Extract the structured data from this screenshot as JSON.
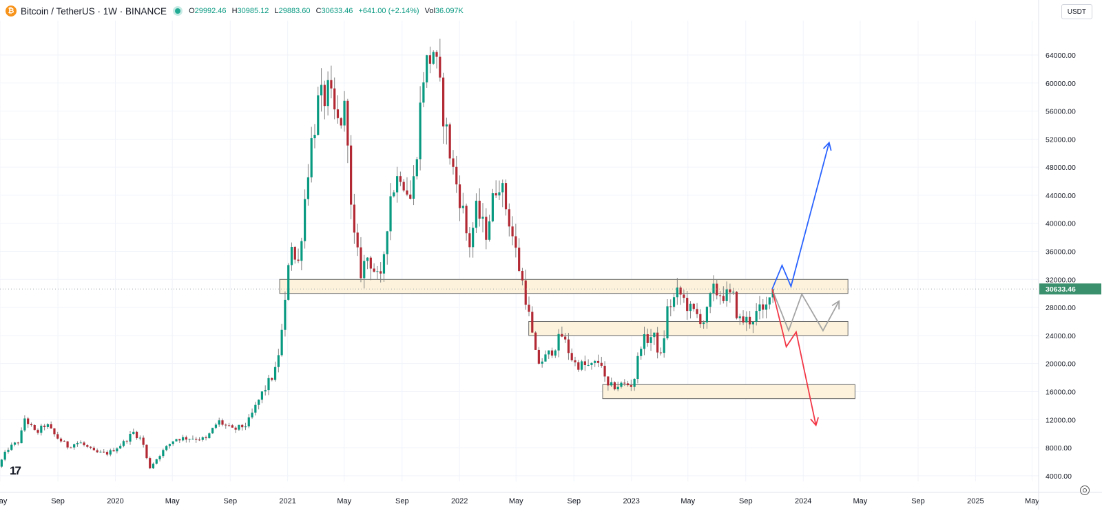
{
  "header": {
    "symbol": "Bitcoin / TetherUS · 1W · BINANCE",
    "open_key": "O",
    "open": "29992.46",
    "high_key": "H",
    "high": "30985.12",
    "low_key": "L",
    "low": "29883.60",
    "close_key": "C",
    "close": "30633.46",
    "change": "+641.00 (+2.14%)",
    "volume_key": "Vol",
    "volume": "36.097K",
    "coin_icon": "bitcoin-icon",
    "live_icon": "market-open-dot-icon"
  },
  "currency_button": "USDT",
  "logo_text": "17",
  "settings_icon": "gear-icon",
  "colors": {
    "up": "#089981",
    "down": "#b22833",
    "zone_fill": "#fdf3dc",
    "zone_border": "#6b6b6b",
    "bull_path": "#2962ff",
    "bear_path": "#f23645",
    "neutral_path": "#a3a3a3",
    "last_price_badge": "#3a8f6c"
  },
  "chart_data": {
    "type": "candlestick",
    "interval": "1W",
    "y_scale": "linear",
    "ylim": [
      3200,
      68900
    ],
    "grid": true,
    "y_ticks": [
      4000,
      8000,
      12000,
      16000,
      20000,
      24000,
      28000,
      32000,
      36000,
      40000,
      44000,
      48000,
      52000,
      56000,
      60000,
      64000
    ],
    "y_tick_labels": [
      "4000.00",
      "8000.00",
      "12000.00",
      "16000.00",
      "20000.00",
      "24000.00",
      "28000.00",
      "32000.00",
      "36000.00",
      "40000.00",
      "44000.00",
      "48000.00",
      "52000.00",
      "56000.00",
      "60000.00",
      "64000.00"
    ],
    "x_range": [
      "2019-05-01",
      "2025-05-15"
    ],
    "x_ticks": [
      {
        "date": "2019-05-01",
        "label": "May"
      },
      {
        "date": "2019-09-01",
        "label": "Sep"
      },
      {
        "date": "2020-01-01",
        "label": "2020"
      },
      {
        "date": "2020-05-01",
        "label": "May"
      },
      {
        "date": "2020-09-01",
        "label": "Sep"
      },
      {
        "date": "2021-01-01",
        "label": "2021"
      },
      {
        "date": "2021-05-01",
        "label": "May"
      },
      {
        "date": "2021-09-01",
        "label": "Sep"
      },
      {
        "date": "2022-01-01",
        "label": "2022"
      },
      {
        "date": "2022-05-01",
        "label": "May"
      },
      {
        "date": "2022-09-01",
        "label": "Sep"
      },
      {
        "date": "2023-01-01",
        "label": "2023"
      },
      {
        "date": "2023-05-01",
        "label": "May"
      },
      {
        "date": "2023-09-01",
        "label": "Sep"
      },
      {
        "date": "2024-01-01",
        "label": "2024"
      },
      {
        "date": "2024-05-01",
        "label": "May"
      },
      {
        "date": "2024-09-01",
        "label": "Sep"
      },
      {
        "date": "2025-01-01",
        "label": "2025"
      },
      {
        "date": "2025-05-01",
        "label": "May"
      }
    ],
    "last_price": 30633.46,
    "last_price_label": "30633.46",
    "price_path": [
      [
        "2019-05-01",
        5300
      ],
      [
        "2019-05-20",
        7800
      ],
      [
        "2019-06-15",
        9000
      ],
      [
        "2019-06-26",
        12200
      ],
      [
        "2019-07-20",
        10000
      ],
      [
        "2019-08-10",
        11400
      ],
      [
        "2019-08-31",
        9600
      ],
      [
        "2019-09-25",
        8200
      ],
      [
        "2019-10-20",
        8800
      ],
      [
        "2019-11-22",
        7300
      ],
      [
        "2019-12-20",
        7200
      ],
      [
        "2020-01-20",
        8600
      ],
      [
        "2020-02-12",
        10200
      ],
      [
        "2020-03-02",
        9000
      ],
      [
        "2020-03-16",
        5000
      ],
      [
        "2020-04-10",
        7200
      ],
      [
        "2020-05-10",
        9300
      ],
      [
        "2020-06-15",
        9400
      ],
      [
        "2020-07-15",
        9200
      ],
      [
        "2020-08-10",
        11800
      ],
      [
        "2020-09-10",
        10500
      ],
      [
        "2020-10-10",
        11300
      ],
      [
        "2020-11-10",
        15600
      ],
      [
        "2020-12-10",
        19000
      ],
      [
        "2020-12-28",
        26500
      ],
      [
        "2021-01-10",
        38500
      ],
      [
        "2021-01-25",
        33000
      ],
      [
        "2021-02-20",
        50000
      ],
      [
        "2021-03-10",
        57000
      ],
      [
        "2021-04-01",
        58500
      ],
      [
        "2021-04-20",
        54000
      ],
      [
        "2021-05-10",
        56500
      ],
      [
        "2021-05-20",
        40000
      ],
      [
        "2021-06-08",
        33000
      ],
      [
        "2021-06-25",
        35500
      ],
      [
        "2021-07-20",
        31000
      ],
      [
        "2021-08-10",
        44000
      ],
      [
        "2021-09-01",
        47500
      ],
      [
        "2021-09-25",
        43000
      ],
      [
        "2021-10-20",
        61500
      ],
      [
        "2021-11-10",
        64800
      ],
      [
        "2021-11-28",
        57000
      ],
      [
        "2021-12-20",
        48000
      ],
      [
        "2022-01-10",
        42500
      ],
      [
        "2022-01-24",
        36500
      ],
      [
        "2022-02-10",
        42000
      ],
      [
        "2022-03-01",
        38500
      ],
      [
        "2022-03-28",
        46800
      ],
      [
        "2022-04-20",
        40500
      ],
      [
        "2022-05-10",
        34000
      ],
      [
        "2022-05-25",
        29500
      ],
      [
        "2022-06-18",
        20000
      ],
      [
        "2022-07-10",
        21000
      ],
      [
        "2022-08-10",
        24000
      ],
      [
        "2022-09-05",
        20000
      ],
      [
        "2022-10-10",
        19500
      ],
      [
        "2022-11-01",
        20500
      ],
      [
        "2022-11-12",
        16500
      ],
      [
        "2022-12-15",
        17000
      ],
      [
        "2023-01-08",
        17000
      ],
      [
        "2023-01-25",
        23000
      ],
      [
        "2023-02-20",
        24000
      ],
      [
        "2023-03-10",
        20500
      ],
      [
        "2023-03-20",
        27500
      ],
      [
        "2023-04-15",
        30200
      ],
      [
        "2023-05-10",
        27600
      ],
      [
        "2023-06-10",
        26000
      ],
      [
        "2023-06-25",
        30400
      ],
      [
        "2023-07-20",
        29800
      ],
      [
        "2023-08-10",
        29300
      ],
      [
        "2023-08-20",
        26100
      ],
      [
        "2023-09-15",
        26200
      ],
      [
        "2023-10-05",
        27600
      ],
      [
        "2023-10-15",
        26900
      ],
      [
        "2023-10-25",
        30633
      ]
    ],
    "zones": [
      {
        "start": "2020-12-15",
        "end": "2024-04-05",
        "low": 30000,
        "high": 32000
      },
      {
        "start": "2022-05-28",
        "end": "2024-04-05",
        "low": 24000,
        "high": 26000
      },
      {
        "start": "2022-11-01",
        "end": "2024-04-20",
        "low": 15000,
        "high": 17000
      }
    ],
    "projection_paths": [
      {
        "direction": "bullish",
        "points": [
          [
            "2023-10-27",
            30600
          ],
          [
            "2023-11-17",
            34000
          ],
          [
            "2023-12-06",
            31000
          ],
          [
            "2024-02-25",
            51500
          ]
        ]
      },
      {
        "direction": "neutral",
        "points": [
          [
            "2023-10-27",
            30600
          ],
          [
            "2023-12-01",
            24700
          ],
          [
            "2023-12-29",
            29900
          ],
          [
            "2024-02-12",
            24700
          ],
          [
            "2024-03-17",
            28900
          ]
        ]
      },
      {
        "direction": "bearish",
        "points": [
          [
            "2023-10-27",
            30600
          ],
          [
            "2023-11-26",
            22400
          ],
          [
            "2023-12-17",
            24500
          ],
          [
            "2024-01-28",
            11200
          ]
        ]
      }
    ]
  }
}
